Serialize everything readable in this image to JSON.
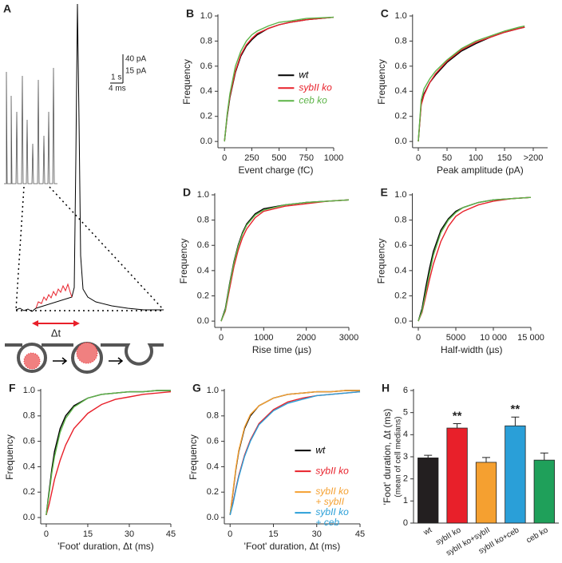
{
  "panel_a": {
    "label": "A",
    "scale_labels": [
      "40 pA",
      "15 pA",
      "1 s",
      "4 ms"
    ],
    "delta_label": "Δt"
  },
  "chart_data": [
    {
      "type": "line",
      "panel": "B",
      "xlabel": "Event charge (fC)",
      "ylabel": "Frequency",
      "x": [
        0,
        25,
        50,
        100,
        150,
        200,
        250,
        300,
        400,
        500,
        600,
        750,
        1000
      ],
      "series": [
        {
          "name": "wt",
          "color": "#000000",
          "values": [
            0,
            0.2,
            0.35,
            0.55,
            0.68,
            0.76,
            0.81,
            0.85,
            0.9,
            0.93,
            0.95,
            0.97,
            0.99
          ]
        },
        {
          "name": "sybII ko",
          "color": "#e8202a",
          "values": [
            0,
            0.21,
            0.36,
            0.56,
            0.69,
            0.77,
            0.82,
            0.86,
            0.9,
            0.93,
            0.95,
            0.97,
            0.99
          ]
        },
        {
          "name": "ceb ko",
          "color": "#5cb347",
          "values": [
            0,
            0.22,
            0.38,
            0.6,
            0.72,
            0.8,
            0.85,
            0.88,
            0.92,
            0.95,
            0.96,
            0.98,
            0.99
          ]
        }
      ],
      "xlim": [
        -60,
        1000
      ],
      "ylim": [
        -0.05,
        1.0
      ],
      "xticks": [
        0,
        250,
        500,
        750,
        1000
      ],
      "yticks": [
        {
          "value": 0,
          "label": "0.0"
        },
        0.2,
        0.4,
        0.6,
        0.8,
        {
          "value": 1,
          "label": "1.0"
        }
      ],
      "legend": "center-right"
    },
    {
      "type": "line",
      "panel": "C",
      "xlabel": "Peak amplitude (pA)",
      "ylabel": "Frequency",
      "x": [
        0,
        5,
        10,
        20,
        30,
        50,
        75,
        100,
        125,
        150,
        175,
        185
      ],
      "series": [
        {
          "color": "#000000",
          "values": [
            0,
            0.3,
            0.38,
            0.47,
            0.53,
            0.63,
            0.72,
            0.78,
            0.83,
            0.87,
            0.9,
            0.91
          ]
        },
        {
          "color": "#e8202a",
          "values": [
            0,
            0.29,
            0.37,
            0.47,
            0.54,
            0.64,
            0.73,
            0.79,
            0.83,
            0.87,
            0.9,
            0.91
          ]
        },
        {
          "color": "#5cb347",
          "values": [
            0,
            0.33,
            0.42,
            0.5,
            0.56,
            0.65,
            0.74,
            0.8,
            0.84,
            0.88,
            0.91,
            0.92
          ]
        }
      ],
      "xlim": [
        -10,
        225
      ],
      "ylim": [
        -0.05,
        1.0
      ],
      "xticks": [
        0,
        50,
        100,
        150,
        {
          "value": 200,
          "label": ">200"
        }
      ],
      "yticks": [
        {
          "value": 0,
          "label": "0.0"
        },
        0.2,
        0.4,
        0.6,
        0.8,
        {
          "value": 1,
          "label": "1.0"
        }
      ]
    },
    {
      "type": "line",
      "panel": "D",
      "xlabel": "Rise time (µs)",
      "ylabel": "Frequency",
      "x": [
        0,
        100,
        200,
        300,
        400,
        500,
        600,
        800,
        1000,
        1500,
        2000,
        2500,
        3000
      ],
      "series": [
        {
          "color": "#000000",
          "values": [
            0,
            0.1,
            0.3,
            0.47,
            0.6,
            0.7,
            0.77,
            0.85,
            0.89,
            0.92,
            0.94,
            0.95,
            0.96
          ]
        },
        {
          "color": "#e8202a",
          "values": [
            0,
            0.08,
            0.26,
            0.43,
            0.56,
            0.66,
            0.73,
            0.82,
            0.87,
            0.91,
            0.93,
            0.95,
            0.96
          ]
        },
        {
          "color": "#5cb347",
          "values": [
            0,
            0.09,
            0.29,
            0.46,
            0.59,
            0.69,
            0.76,
            0.84,
            0.88,
            0.92,
            0.94,
            0.95,
            0.96
          ]
        }
      ],
      "xlim": [
        -150,
        3000
      ],
      "ylim": [
        -0.05,
        1.0
      ],
      "xticks": [
        0,
        1000,
        2000,
        3000
      ],
      "yticks": [
        {
          "value": 0,
          "label": "0.0"
        },
        0.2,
        0.4,
        0.6,
        0.8,
        {
          "value": 1,
          "label": "1.0"
        }
      ]
    },
    {
      "type": "line",
      "panel": "E",
      "xlabel": "Half-width (µs)",
      "ylabel": "Frequency",
      "x": [
        0,
        500,
        1000,
        1500,
        2000,
        3000,
        4000,
        5000,
        6000,
        8000,
        10000,
        12500,
        15000
      ],
      "series": [
        {
          "color": "#000000",
          "values": [
            0,
            0.1,
            0.27,
            0.42,
            0.55,
            0.72,
            0.81,
            0.87,
            0.9,
            0.94,
            0.96,
            0.97,
            0.98
          ]
        },
        {
          "color": "#e8202a",
          "values": [
            0,
            0.07,
            0.2,
            0.33,
            0.45,
            0.63,
            0.75,
            0.83,
            0.87,
            0.92,
            0.95,
            0.97,
            0.98
          ]
        },
        {
          "color": "#5cb347",
          "values": [
            0,
            0.08,
            0.23,
            0.38,
            0.52,
            0.7,
            0.8,
            0.86,
            0.9,
            0.94,
            0.96,
            0.97,
            0.98
          ]
        }
      ],
      "xlim": [
        -800,
        15000
      ],
      "ylim": [
        -0.05,
        1.0
      ],
      "xticks": [
        0,
        5000,
        {
          "value": 10000,
          "label": "10 000"
        },
        {
          "value": 15000,
          "label": "15 000"
        }
      ],
      "yticks": [
        {
          "value": 0,
          "label": "0.0"
        },
        0.2,
        0.4,
        0.6,
        0.8,
        {
          "value": 1,
          "label": "1.0"
        }
      ]
    },
    {
      "type": "line",
      "panel": "F",
      "xlabel": "'Foot' duration, Δt (ms)",
      "ylabel": "Frequency",
      "x": [
        0,
        1,
        2,
        3,
        5,
        7,
        10,
        15,
        20,
        25,
        30,
        35,
        40,
        45
      ],
      "series": [
        {
          "color": "#000000",
          "values": [
            0.02,
            0.2,
            0.38,
            0.52,
            0.7,
            0.8,
            0.88,
            0.94,
            0.97,
            0.98,
            0.99,
            0.99,
            1,
            1
          ]
        },
        {
          "color": "#e8202a",
          "values": [
            0.02,
            0.1,
            0.2,
            0.3,
            0.45,
            0.57,
            0.7,
            0.82,
            0.89,
            0.93,
            0.95,
            0.97,
            0.98,
            0.99
          ]
        },
        {
          "color": "#5cb347",
          "values": [
            0.02,
            0.18,
            0.35,
            0.48,
            0.67,
            0.78,
            0.87,
            0.94,
            0.97,
            0.98,
            0.99,
            0.99,
            1,
            1
          ]
        }
      ],
      "xlim": [
        -2,
        45
      ],
      "ylim": [
        -0.05,
        1.0
      ],
      "xticks": [
        0,
        15,
        30,
        45
      ],
      "yticks": [
        {
          "value": 0,
          "label": "0.0"
        },
        0.2,
        0.4,
        0.6,
        0.8,
        {
          "value": 1,
          "label": "1.0"
        }
      ]
    },
    {
      "type": "line",
      "panel": "G",
      "xlabel": "'Foot' duration, Δt (ms)",
      "ylabel": "Frequency",
      "x": [
        0,
        1,
        2,
        3,
        5,
        7,
        10,
        15,
        20,
        25,
        30,
        35,
        40,
        45
      ],
      "series": [
        {
          "name": "wt",
          "color": "#000000",
          "values": [
            0.02,
            0.2,
            0.38,
            0.52,
            0.7,
            0.8,
            0.88,
            0.94,
            0.97,
            0.98,
            0.99,
            0.99,
            1,
            1
          ]
        },
        {
          "name": "sybII ko",
          "color": "#e8202a",
          "values": [
            0.02,
            0.12,
            0.23,
            0.33,
            0.49,
            0.61,
            0.74,
            0.85,
            0.91,
            0.94,
            0.96,
            0.97,
            0.98,
            0.99
          ]
        },
        {
          "name": "sybII ko\n+ sybII",
          "color": "#f5a030",
          "values": [
            0.02,
            0.21,
            0.39,
            0.53,
            0.71,
            0.81,
            0.88,
            0.94,
            0.97,
            0.98,
            0.99,
            0.99,
            1,
            1
          ]
        },
        {
          "name": "sybII ko\n+ ceb",
          "color": "#2a9fd8",
          "values": [
            0.02,
            0.11,
            0.22,
            0.32,
            0.48,
            0.6,
            0.73,
            0.84,
            0.9,
            0.93,
            0.96,
            0.97,
            0.98,
            0.99
          ]
        }
      ],
      "xlim": [
        -2,
        45
      ],
      "ylim": [
        -0.05,
        1.0
      ],
      "xticks": [
        0,
        15,
        30,
        45
      ],
      "yticks": [
        {
          "value": 0,
          "label": "0.0"
        },
        0.2,
        0.4,
        0.6,
        0.8,
        {
          "value": 1,
          "label": "1.0"
        }
      ],
      "legend": "center-right"
    },
    {
      "type": "bar",
      "panel": "H",
      "ylabel": [
        "'Foot' duration, Δt (ms)",
        "(mean of cell medians)"
      ],
      "categories": [
        "wt",
        "sybII ko",
        "sybII ko+sybII",
        "sybII ko+ceb",
        "ceb ko"
      ],
      "values": [
        2.95,
        4.3,
        2.75,
        4.4,
        2.85
      ],
      "errors": [
        0.12,
        0.2,
        0.22,
        0.4,
        0.32
      ],
      "colors": [
        "#231f20",
        "#e8202a",
        "#f5a030",
        "#2a9fd8",
        "#1fa05a"
      ],
      "annotations": [
        {
          "text": "**",
          "category": "sybII ko"
        },
        {
          "text": "**",
          "category": "sybII ko+ceb"
        }
      ],
      "ylim": [
        0,
        6
      ],
      "yticks": [
        0,
        1,
        2,
        3,
        4,
        5,
        6
      ]
    }
  ]
}
